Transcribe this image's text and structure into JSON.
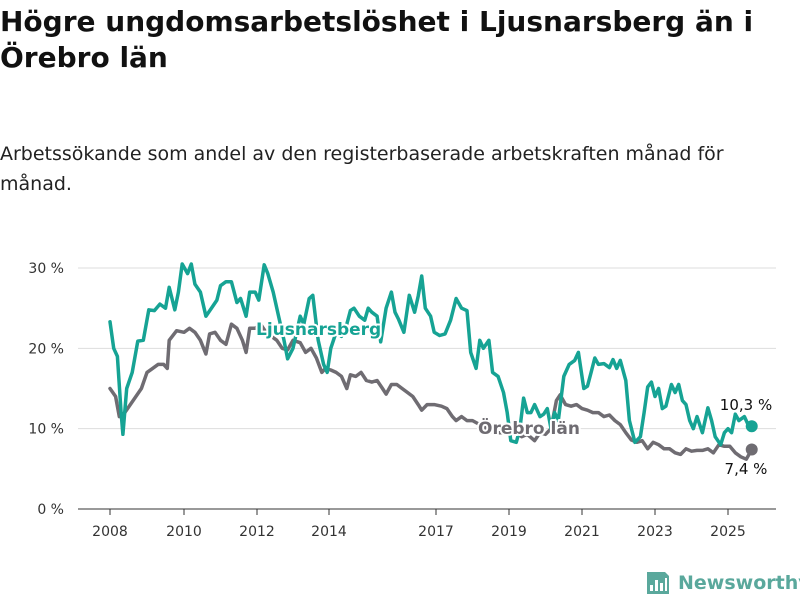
{
  "title": "Högre ungdomsarbetslöshet i Ljusnarsberg än i Örebro län",
  "subtitle": "Arbetssökande som andel av den registerbaserade arbetskraften månad för månad.",
  "brand": {
    "name": "Newsworthy"
  },
  "colors": {
    "ljusnarsberg": "#16a394",
    "orebro": "#6f6c72",
    "grid": "#dddddd",
    "brand": "#5aa89c"
  },
  "chart_data": {
    "type": "line",
    "ylim": [
      0,
      30
    ],
    "y_ticks": [
      {
        "value": 0,
        "label": "0 %"
      },
      {
        "value": 10,
        "label": "10 %"
      },
      {
        "value": 20,
        "label": "20 %"
      },
      {
        "value": 30,
        "label": "30 %"
      }
    ],
    "x_ticks": [
      {
        "value": 2008,
        "label": "2008"
      },
      {
        "value": 2010,
        "label": "2010"
      },
      {
        "value": 2012,
        "label": "2012"
      },
      {
        "value": 2014,
        "label": "2014"
      },
      {
        "value": 2017,
        "label": "2017"
      },
      {
        "value": 2019,
        "label": "2019"
      },
      {
        "value": 2021,
        "label": "2021"
      },
      {
        "value": 2023,
        "label": "2023"
      },
      {
        "value": 2025,
        "label": "2025"
      }
    ],
    "xlim": [
      2007.5,
      2026.5
    ],
    "series": [
      {
        "name": "Ljusnarsberg",
        "end_label": "10,3 %",
        "points": [
          [
            2008.0,
            23.3
          ],
          [
            2008.1,
            20.0
          ],
          [
            2008.2,
            19.0
          ],
          [
            2008.3,
            12.0
          ],
          [
            2008.35,
            9.3
          ],
          [
            2008.45,
            15.0
          ],
          [
            2008.6,
            17.0
          ],
          [
            2008.75,
            20.9
          ],
          [
            2008.9,
            21.0
          ],
          [
            2009.05,
            24.8
          ],
          [
            2009.2,
            24.7
          ],
          [
            2009.35,
            25.5
          ],
          [
            2009.5,
            25.0
          ],
          [
            2009.6,
            27.6
          ],
          [
            2009.75,
            24.8
          ],
          [
            2009.85,
            27.0
          ],
          [
            2009.95,
            30.5
          ],
          [
            2010.1,
            29.3
          ],
          [
            2010.2,
            30.5
          ],
          [
            2010.3,
            28.0
          ],
          [
            2010.45,
            27.0
          ],
          [
            2010.6,
            24.0
          ],
          [
            2010.75,
            25.0
          ],
          [
            2010.9,
            26.0
          ],
          [
            2011.0,
            27.8
          ],
          [
            2011.15,
            28.3
          ],
          [
            2011.3,
            28.3
          ],
          [
            2011.45,
            25.7
          ],
          [
            2011.55,
            26.2
          ],
          [
            2011.7,
            24.0
          ],
          [
            2011.8,
            27.0
          ],
          [
            2011.95,
            27.0
          ],
          [
            2012.05,
            26.0
          ],
          [
            2012.2,
            30.4
          ],
          [
            2012.3,
            29.3
          ],
          [
            2012.45,
            27.0
          ],
          [
            2012.6,
            24.0
          ],
          [
            2012.75,
            21.0
          ],
          [
            2012.85,
            18.7
          ],
          [
            2013.0,
            20.0
          ],
          [
            2013.1,
            22.0
          ],
          [
            2013.2,
            24.0
          ],
          [
            2013.3,
            23.0
          ],
          [
            2013.45,
            26.2
          ],
          [
            2013.55,
            26.6
          ],
          [
            2013.7,
            21.0
          ],
          [
            2013.85,
            18.0
          ],
          [
            2013.95,
            17.0
          ],
          [
            2014.05,
            20.0
          ],
          [
            2014.2,
            22.0
          ],
          [
            2014.35,
            21.5
          ],
          [
            2014.5,
            23.0
          ],
          [
            2014.6,
            24.7
          ],
          [
            2014.7,
            25.0
          ],
          [
            2014.85,
            24.0
          ],
          [
            2015.0,
            23.5
          ],
          [
            2015.1,
            25.0
          ],
          [
            2015.2,
            24.5
          ],
          [
            2015.35,
            24.0
          ],
          [
            2015.45,
            20.8
          ],
          [
            2015.6,
            25.0
          ],
          [
            2015.75,
            27.0
          ],
          [
            2015.85,
            24.5
          ],
          [
            2015.95,
            23.6
          ],
          [
            2016.1,
            22.0
          ],
          [
            2016.25,
            26.6
          ],
          [
            2016.4,
            24.5
          ],
          [
            2016.5,
            26.5
          ],
          [
            2016.6,
            29.0
          ],
          [
            2016.7,
            25.0
          ],
          [
            2016.85,
            24.0
          ],
          [
            2016.95,
            22.0
          ],
          [
            2017.1,
            21.6
          ],
          [
            2017.25,
            21.8
          ],
          [
            2017.4,
            23.5
          ],
          [
            2017.55,
            26.2
          ],
          [
            2017.7,
            25.0
          ],
          [
            2017.85,
            24.7
          ],
          [
            2017.95,
            19.5
          ],
          [
            2018.1,
            17.5
          ],
          [
            2018.2,
            21.0
          ],
          [
            2018.3,
            20.0
          ],
          [
            2018.45,
            21.0
          ],
          [
            2018.55,
            17.0
          ],
          [
            2018.7,
            16.5
          ],
          [
            2018.85,
            14.5
          ],
          [
            2018.95,
            12.0
          ],
          [
            2019.05,
            8.5
          ],
          [
            2019.2,
            8.3
          ],
          [
            2019.3,
            10.0
          ],
          [
            2019.4,
            13.8
          ],
          [
            2019.5,
            12.0
          ],
          [
            2019.6,
            12.0
          ],
          [
            2019.7,
            13.0
          ],
          [
            2019.85,
            11.5
          ],
          [
            2019.95,
            11.8
          ],
          [
            2020.05,
            12.5
          ],
          [
            2020.15,
            10.0
          ],
          [
            2020.25,
            12.0
          ],
          [
            2020.35,
            11.0
          ],
          [
            2020.5,
            16.5
          ],
          [
            2020.65,
            18.0
          ],
          [
            2020.8,
            18.5
          ],
          [
            2020.9,
            19.5
          ],
          [
            2021.05,
            15.0
          ],
          [
            2021.15,
            15.3
          ],
          [
            2021.25,
            17.0
          ],
          [
            2021.35,
            18.8
          ],
          [
            2021.45,
            18.0
          ],
          [
            2021.6,
            18.1
          ],
          [
            2021.75,
            17.6
          ],
          [
            2021.85,
            18.6
          ],
          [
            2021.95,
            17.5
          ],
          [
            2022.05,
            18.5
          ],
          [
            2022.2,
            16.0
          ],
          [
            2022.3,
            11.0
          ],
          [
            2022.45,
            8.3
          ],
          [
            2022.6,
            9.0
          ],
          [
            2022.7,
            12.0
          ],
          [
            2022.8,
            15.2
          ],
          [
            2022.9,
            15.8
          ],
          [
            2023.0,
            14.0
          ],
          [
            2023.1,
            15.0
          ],
          [
            2023.2,
            12.5
          ],
          [
            2023.3,
            12.8
          ],
          [
            2023.45,
            15.5
          ],
          [
            2023.55,
            14.5
          ],
          [
            2023.65,
            15.5
          ],
          [
            2023.75,
            13.5
          ],
          [
            2023.85,
            13.0
          ],
          [
            2023.95,
            11.0
          ],
          [
            2024.05,
            10.0
          ],
          [
            2024.15,
            11.5
          ],
          [
            2024.3,
            9.5
          ],
          [
            2024.45,
            12.6
          ],
          [
            2024.55,
            11.0
          ],
          [
            2024.65,
            9.0
          ],
          [
            2024.8,
            8.0
          ],
          [
            2024.9,
            9.5
          ],
          [
            2025.0,
            10.0
          ],
          [
            2025.1,
            9.5
          ],
          [
            2025.2,
            11.8
          ],
          [
            2025.3,
            11.0
          ],
          [
            2025.45,
            11.5
          ],
          [
            2025.55,
            10.5
          ],
          [
            2025.65,
            10.3
          ]
        ]
      },
      {
        "name": "Örebro län",
        "end_label": "7,4 %",
        "points": [
          [
            2008.0,
            15.0
          ],
          [
            2008.15,
            14.0
          ],
          [
            2008.25,
            11.5
          ],
          [
            2008.4,
            12.0
          ],
          [
            2008.55,
            13.0
          ],
          [
            2008.7,
            14.0
          ],
          [
            2008.85,
            15.0
          ],
          [
            2009.0,
            17.0
          ],
          [
            2009.15,
            17.5
          ],
          [
            2009.3,
            18.0
          ],
          [
            2009.45,
            18.0
          ],
          [
            2009.55,
            17.5
          ],
          [
            2009.6,
            21.0
          ],
          [
            2009.8,
            22.2
          ],
          [
            2010.0,
            22.0
          ],
          [
            2010.15,
            22.5
          ],
          [
            2010.3,
            22.0
          ],
          [
            2010.45,
            21.0
          ],
          [
            2010.6,
            19.3
          ],
          [
            2010.7,
            21.8
          ],
          [
            2010.85,
            22.0
          ],
          [
            2011.0,
            21.0
          ],
          [
            2011.15,
            20.5
          ],
          [
            2011.3,
            23.0
          ],
          [
            2011.45,
            22.5
          ],
          [
            2011.6,
            21.0
          ],
          [
            2011.7,
            19.5
          ],
          [
            2011.8,
            22.5
          ],
          [
            2011.95,
            22.5
          ],
          [
            2012.1,
            23.0
          ],
          [
            2012.25,
            22.0
          ],
          [
            2012.4,
            21.5
          ],
          [
            2012.55,
            21.0
          ],
          [
            2012.7,
            20.0
          ],
          [
            2012.85,
            19.8
          ],
          [
            2013.0,
            21.0
          ],
          [
            2013.2,
            20.7
          ],
          [
            2013.35,
            19.5
          ],
          [
            2013.5,
            20.0
          ],
          [
            2013.65,
            18.8
          ],
          [
            2013.8,
            17.0
          ],
          [
            2013.9,
            17.5
          ],
          [
            2014.05,
            17.3
          ],
          [
            2014.2,
            17.0
          ],
          [
            2014.35,
            16.5
          ],
          [
            2014.5,
            15.0
          ],
          [
            2014.6,
            16.7
          ],
          [
            2014.75,
            16.5
          ],
          [
            2014.9,
            17.0
          ],
          [
            2015.05,
            16.0
          ],
          [
            2015.2,
            15.8
          ],
          [
            2015.35,
            16.0
          ],
          [
            2015.5,
            15.0
          ],
          [
            2015.6,
            14.3
          ],
          [
            2015.75,
            15.5
          ],
          [
            2015.9,
            15.5
          ],
          [
            2016.05,
            15.0
          ],
          [
            2016.2,
            14.5
          ],
          [
            2016.35,
            14.0
          ],
          [
            2016.5,
            13.0
          ],
          [
            2016.6,
            12.3
          ],
          [
            2016.75,
            13.0
          ],
          [
            2016.95,
            13.0
          ],
          [
            2017.15,
            12.8
          ],
          [
            2017.3,
            12.5
          ],
          [
            2017.45,
            11.5
          ],
          [
            2017.55,
            11.0
          ],
          [
            2017.7,
            11.5
          ],
          [
            2017.85,
            11.0
          ],
          [
            2018.0,
            11.0
          ],
          [
            2018.2,
            10.5
          ],
          [
            2018.4,
            10.0
          ],
          [
            2018.6,
            9.5
          ],
          [
            2018.8,
            9.5
          ],
          [
            2019.0,
            9.3
          ],
          [
            2019.2,
            9.5
          ],
          [
            2019.35,
            9.0
          ],
          [
            2019.5,
            9.3
          ],
          [
            2019.7,
            8.5
          ],
          [
            2019.85,
            9.5
          ],
          [
            2020.0,
            9.3
          ],
          [
            2020.15,
            10.0
          ],
          [
            2020.3,
            13.5
          ],
          [
            2020.4,
            14.2
          ],
          [
            2020.55,
            13.0
          ],
          [
            2020.7,
            12.8
          ],
          [
            2020.85,
            13.0
          ],
          [
            2021.0,
            12.5
          ],
          [
            2021.15,
            12.3
          ],
          [
            2021.3,
            12.0
          ],
          [
            2021.45,
            12.0
          ],
          [
            2021.6,
            11.5
          ],
          [
            2021.75,
            11.7
          ],
          [
            2021.9,
            11.0
          ],
          [
            2022.05,
            10.5
          ],
          [
            2022.2,
            9.5
          ],
          [
            2022.35,
            8.6
          ],
          [
            2022.5,
            8.3
          ],
          [
            2022.65,
            8.5
          ],
          [
            2022.8,
            7.5
          ],
          [
            2022.95,
            8.3
          ],
          [
            2023.1,
            8.0
          ],
          [
            2023.25,
            7.5
          ],
          [
            2023.4,
            7.5
          ],
          [
            2023.55,
            7.0
          ],
          [
            2023.7,
            6.8
          ],
          [
            2023.85,
            7.5
          ],
          [
            2024.0,
            7.2
          ],
          [
            2024.15,
            7.3
          ],
          [
            2024.3,
            7.3
          ],
          [
            2024.45,
            7.5
          ],
          [
            2024.6,
            7.0
          ],
          [
            2024.75,
            8.0
          ],
          [
            2024.9,
            7.8
          ],
          [
            2025.05,
            7.8
          ],
          [
            2025.2,
            7.0
          ],
          [
            2025.35,
            6.5
          ],
          [
            2025.5,
            6.2
          ],
          [
            2025.65,
            7.4
          ]
        ]
      }
    ]
  }
}
